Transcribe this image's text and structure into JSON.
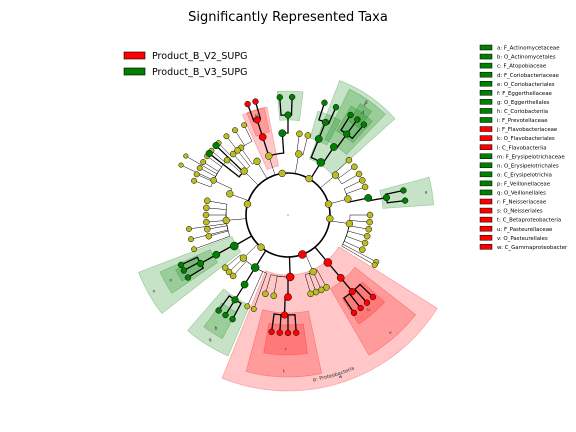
{
  "chart_data": {
    "type": "cladogram",
    "title": "Significantly Represented Taxa",
    "legend": [
      {
        "label": "Product_B_V2_SUPG",
        "color": "#ff0000"
      },
      {
        "label": "Product_B_V3_SUPG",
        "color": "#008000"
      }
    ],
    "taxa_key": [
      {
        "code": "a",
        "taxon": "F_Actinomycetaceae",
        "group": "Product_B_V3_SUPG"
      },
      {
        "code": "b",
        "taxon": "O_Actinomycetales",
        "group": "Product_B_V3_SUPG"
      },
      {
        "code": "c",
        "taxon": "F_Atopobiaceae",
        "group": "Product_B_V3_SUPG"
      },
      {
        "code": "d",
        "taxon": "F_Coriobacteriaceae",
        "group": "Product_B_V3_SUPG"
      },
      {
        "code": "e",
        "taxon": "O_Coriobacteriales",
        "group": "Product_B_V3_SUPG"
      },
      {
        "code": "f",
        "taxon": "F_Eggerthellaceae",
        "group": "Product_B_V3_SUPG"
      },
      {
        "code": "g",
        "taxon": "O_Eggerthellales",
        "group": "Product_B_V3_SUPG"
      },
      {
        "code": "h",
        "taxon": "C_Coriobacteriia",
        "group": "Product_B_V3_SUPG"
      },
      {
        "code": "i",
        "taxon": "F_Prevotellaceae",
        "group": "Product_B_V3_SUPG"
      },
      {
        "code": "j",
        "taxon": "F_Flavobacteriaceae",
        "group": "Product_B_V2_SUPG"
      },
      {
        "code": "k",
        "taxon": "O_Flavobacteriales",
        "group": "Product_B_V2_SUPG"
      },
      {
        "code": "l",
        "taxon": "C_Flavobacteriia",
        "group": "Product_B_V2_SUPG"
      },
      {
        "code": "m",
        "taxon": "F_Erysipelotrichaceae",
        "group": "Product_B_V3_SUPG"
      },
      {
        "code": "n",
        "taxon": "O_Erysipelotrichales",
        "group": "Product_B_V3_SUPG"
      },
      {
        "code": "o",
        "taxon": "C_Erysipelotrichia",
        "group": "Product_B_V3_SUPG"
      },
      {
        "code": "p",
        "taxon": "F_Veillonellaceae",
        "group": "Product_B_V3_SUPG"
      },
      {
        "code": "q",
        "taxon": "O_Veillonellales",
        "group": "Product_B_V3_SUPG"
      },
      {
        "code": "r",
        "taxon": "F_Neisseriaceae",
        "group": "Product_B_V2_SUPG"
      },
      {
        "code": "s",
        "taxon": "O_Neisseriales",
        "group": "Product_B_V2_SUPG"
      },
      {
        "code": "t",
        "taxon": "C_Betaproteobacteria",
        "group": "Product_B_V2_SUPG"
      },
      {
        "code": "u",
        "taxon": "F_Pasteurellaceae",
        "group": "Product_B_V2_SUPG"
      },
      {
        "code": "v",
        "taxon": "O_Pasteurellales",
        "group": "Product_B_V2_SUPG"
      },
      {
        "code": "w",
        "taxon": "C_Gammaproteobacter",
        "group": "Product_B_V2_SUPG"
      }
    ],
    "highlighted_clades": [
      {
        "label": "k",
        "group": "Product_B_V2_SUPG"
      },
      {
        "label": "j",
        "group": "Product_B_V2_SUPG"
      },
      {
        "label": "i",
        "group": "Product_B_V3_SUPG"
      },
      {
        "label": "g",
        "group": "Product_B_V3_SUPG"
      },
      {
        "label": "f",
        "group": "Product_B_V3_SUPG"
      },
      {
        "label": "e",
        "group": "Product_B_V3_SUPG"
      },
      {
        "label": "d",
        "group": "Product_B_V3_SUPG"
      },
      {
        "label": "h",
        "group": "Product_B_V3_SUPG"
      },
      {
        "label": "a",
        "group": "Product_B_V3_SUPG"
      },
      {
        "label": "w",
        "group": "Product_B_V2_SUPG"
      },
      {
        "label": "v",
        "group": "Product_B_V2_SUPG"
      },
      {
        "label": "u",
        "group": "Product_B_V2_SUPG"
      },
      {
        "label": "t",
        "group": "Product_B_V2_SUPG"
      },
      {
        "label": "r",
        "group": "Product_B_V2_SUPG"
      },
      {
        "label": "q",
        "group": "Product_B_V3_SUPG"
      },
      {
        "label": "n",
        "group": "Product_B_V3_SUPG"
      },
      {
        "label": "o",
        "group": "Product_B_V3_SUPG"
      },
      {
        "label": "m",
        "group": "Product_B_V3_SUPG"
      },
      {
        "label": "b",
        "group": "Product_B_V3_SUPG"
      }
    ],
    "curved_labels": [
      "p: Proteobacteria"
    ],
    "colors": {
      "v2": "#ff0000",
      "v3": "#008000",
      "non_significant": "#bcbd22",
      "branch": "#000000"
    }
  }
}
